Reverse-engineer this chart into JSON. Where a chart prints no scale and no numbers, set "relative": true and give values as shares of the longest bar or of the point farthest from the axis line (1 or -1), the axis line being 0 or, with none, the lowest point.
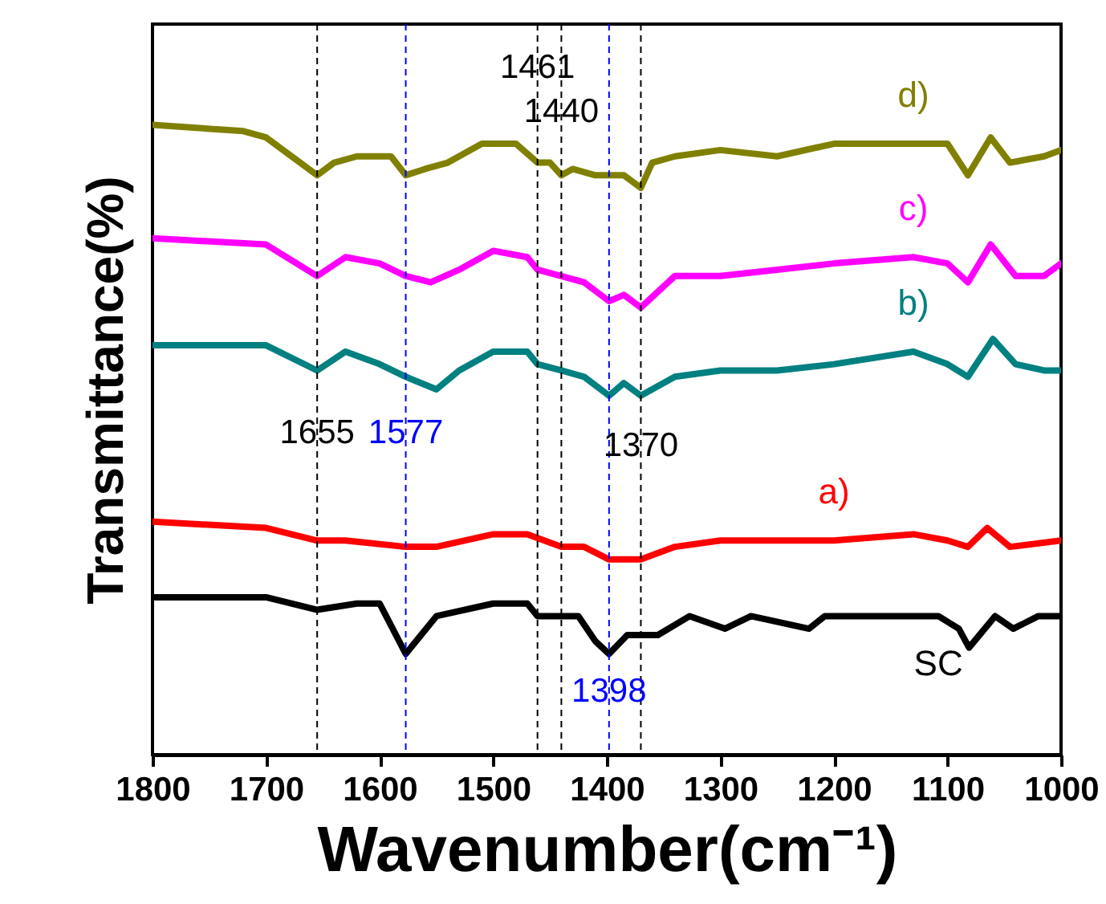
{
  "chart_data": {
    "type": "line",
    "relative": true,
    "xlabel": "Wavenumber(cm⁻¹)",
    "ylabel": "Transmittance(%)",
    "xlim": [
      1800,
      1000
    ],
    "xticks": [
      1800,
      1700,
      1600,
      1500,
      1400,
      1300,
      1200,
      1100,
      1000
    ],
    "series": [
      {
        "name": "d)",
        "color": "#808000",
        "x": [
          1800,
          1720,
          1700,
          1655,
          1640,
          1620,
          1590,
          1577,
          1560,
          1540,
          1510,
          1480,
          1461,
          1450,
          1440,
          1430,
          1410,
          1398,
          1385,
          1370,
          1360,
          1340,
          1300,
          1250,
          1200,
          1130,
          1100,
          1082,
          1062,
          1045,
          1015,
          1000
        ],
        "values": [
          1,
          0.99,
          0.98,
          0.92,
          0.94,
          0.95,
          0.95,
          0.92,
          0.93,
          0.94,
          0.97,
          0.97,
          0.94,
          0.94,
          0.92,
          0.93,
          0.92,
          0.92,
          0.92,
          0.9,
          0.94,
          0.95,
          0.96,
          0.95,
          0.97,
          0.97,
          0.97,
          0.92,
          0.98,
          0.94,
          0.95,
          0.96
        ]
      },
      {
        "name": "c)",
        "color": "#ff00ff",
        "x": [
          1800,
          1700,
          1655,
          1630,
          1600,
          1577,
          1555,
          1530,
          1500,
          1470,
          1461,
          1440,
          1420,
          1398,
          1385,
          1370,
          1340,
          1300,
          1250,
          1200,
          1130,
          1100,
          1082,
          1062,
          1040,
          1015,
          1000
        ],
        "values": [
          0.82,
          0.81,
          0.76,
          0.79,
          0.78,
          0.76,
          0.75,
          0.77,
          0.8,
          0.79,
          0.77,
          0.76,
          0.75,
          0.72,
          0.73,
          0.71,
          0.76,
          0.76,
          0.77,
          0.78,
          0.79,
          0.78,
          0.75,
          0.81,
          0.76,
          0.76,
          0.78
        ]
      },
      {
        "name": "b)",
        "color": "#008080",
        "x": [
          1800,
          1700,
          1655,
          1630,
          1600,
          1577,
          1550,
          1530,
          1500,
          1470,
          1461,
          1440,
          1420,
          1398,
          1385,
          1370,
          1340,
          1300,
          1250,
          1200,
          1130,
          1100,
          1082,
          1060,
          1040,
          1015,
          1000
        ],
        "values": [
          0.65,
          0.65,
          0.61,
          0.64,
          0.62,
          0.6,
          0.58,
          0.61,
          0.64,
          0.64,
          0.62,
          0.61,
          0.6,
          0.57,
          0.59,
          0.57,
          0.6,
          0.61,
          0.61,
          0.62,
          0.64,
          0.62,
          0.6,
          0.66,
          0.62,
          0.61,
          0.61
        ]
      },
      {
        "name": "a)",
        "color": "#ff0000",
        "x": [
          1800,
          1700,
          1655,
          1630,
          1577,
          1550,
          1500,
          1470,
          1440,
          1420,
          1398,
          1370,
          1340,
          1300,
          1200,
          1130,
          1100,
          1082,
          1065,
          1045,
          1000
        ],
        "values": [
          0.37,
          0.36,
          0.34,
          0.34,
          0.33,
          0.33,
          0.35,
          0.35,
          0.33,
          0.33,
          0.31,
          0.31,
          0.33,
          0.34,
          0.34,
          0.35,
          0.34,
          0.33,
          0.36,
          0.33,
          0.34
        ]
      },
      {
        "name": "SC",
        "color": "#000000",
        "x": [
          1800,
          1700,
          1655,
          1620,
          1600,
          1577,
          1550,
          1500,
          1470,
          1461,
          1440,
          1425,
          1410,
          1398,
          1382,
          1355,
          1327,
          1296,
          1273,
          1222,
          1208,
          1181,
          1140,
          1108,
          1090,
          1081,
          1058,
          1042,
          1020,
          1000
        ],
        "values": [
          0.25,
          0.25,
          0.23,
          0.24,
          0.24,
          0.16,
          0.22,
          0.24,
          0.24,
          0.22,
          0.22,
          0.22,
          0.18,
          0.16,
          0.19,
          0.19,
          0.22,
          0.2,
          0.22,
          0.2,
          0.22,
          0.22,
          0.22,
          0.22,
          0.2,
          0.17,
          0.22,
          0.2,
          0.22,
          0.22
        ]
      }
    ],
    "ref_lines": [
      {
        "axis": "x",
        "value": 1655,
        "label": "1655",
        "color": "#000000",
        "line_style": "dashed"
      },
      {
        "axis": "x",
        "value": 1577,
        "label": "1577",
        "color": "#0000ff",
        "line_style": "dashed"
      },
      {
        "axis": "x",
        "value": 1461,
        "label": "1461",
        "color": "#000000",
        "line_style": "dashed"
      },
      {
        "axis": "x",
        "value": 1440,
        "label": "1440",
        "color": "#000000",
        "line_style": "dashed"
      },
      {
        "axis": "x",
        "value": 1398,
        "label": "1398",
        "color": "#0000ff",
        "line_style": "dashed"
      },
      {
        "axis": "x",
        "value": 1370,
        "label": "1370",
        "color": "#000000",
        "line_style": "dashed"
      }
    ]
  }
}
